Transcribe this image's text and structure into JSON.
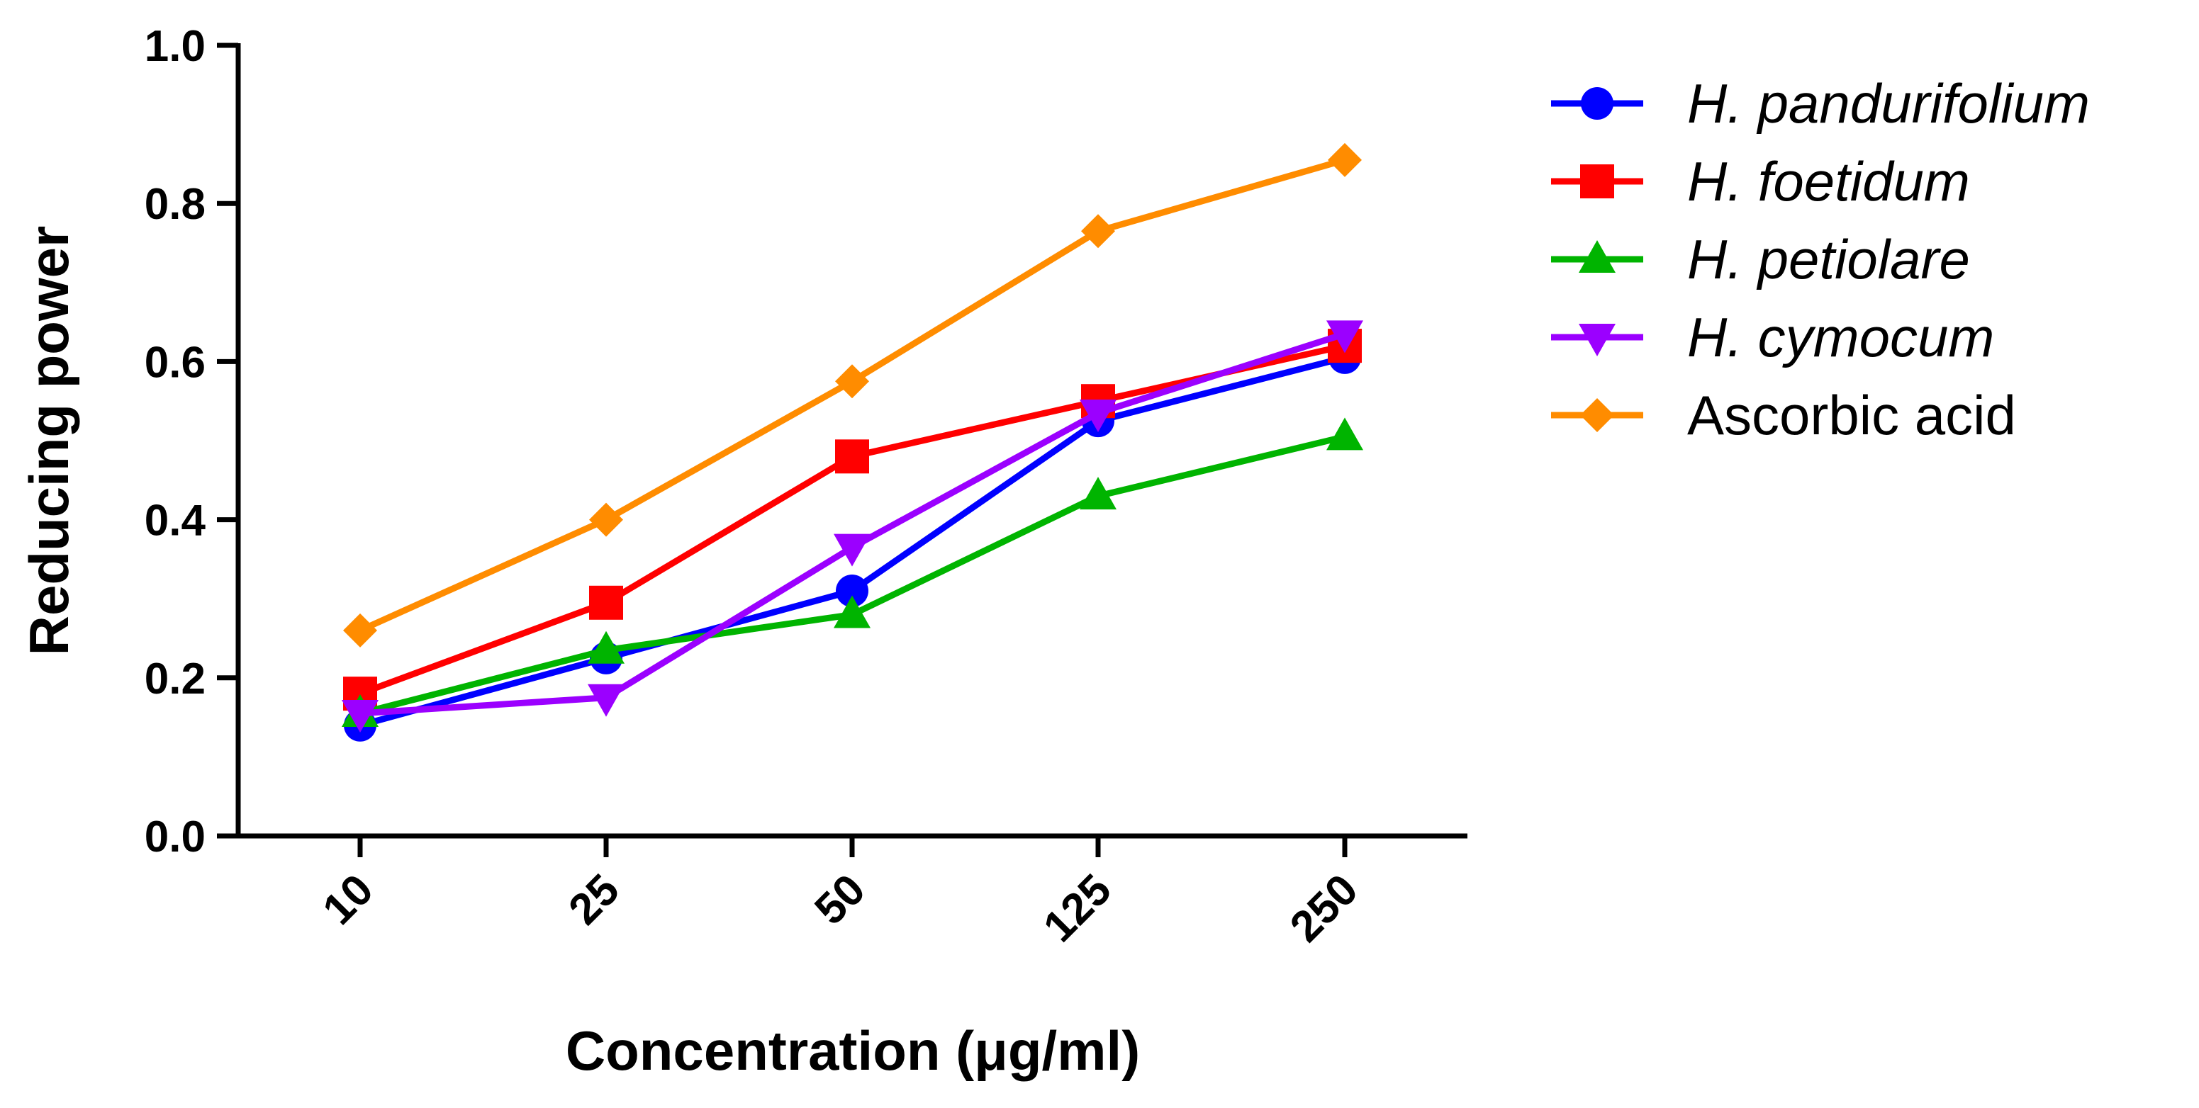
{
  "chart_data": {
    "type": "line",
    "title": "",
    "xlabel": "Concentration (μg/ml)",
    "ylabel": "Reducing power",
    "categories": [
      "10",
      "25",
      "50",
      "125",
      "250"
    ],
    "ylim": [
      0,
      1.0
    ],
    "yticks": [
      "0.0",
      "0.2",
      "0.4",
      "0.6",
      "0.8",
      "1.0"
    ],
    "grid": false,
    "legend_position": "right",
    "series": [
      {
        "name": "H. pandurifolium",
        "italic": true,
        "color": "#0000ff",
        "marker": "circle",
        "values": [
          0.14,
          0.225,
          0.31,
          0.525,
          0.605
        ]
      },
      {
        "name": "H. foetidum",
        "italic": true,
        "color": "#ff0000",
        "marker": "square",
        "values": [
          0.18,
          0.295,
          0.48,
          0.55,
          0.62
        ]
      },
      {
        "name": "H. petiolare",
        "italic": true,
        "color": "#00b400",
        "marker": "triangle-up",
        "values": [
          0.155,
          0.235,
          0.28,
          0.43,
          0.505
        ]
      },
      {
        "name": "H. cymocum",
        "italic": true,
        "color": "#9b00ff",
        "marker": "triangle-down",
        "values": [
          0.155,
          0.175,
          0.365,
          0.535,
          0.635
        ]
      },
      {
        "name": "Ascorbic acid",
        "italic": false,
        "color": "#ff8c00",
        "marker": "diamond",
        "values": [
          0.26,
          0.4,
          0.575,
          0.765,
          0.855
        ]
      }
    ]
  }
}
